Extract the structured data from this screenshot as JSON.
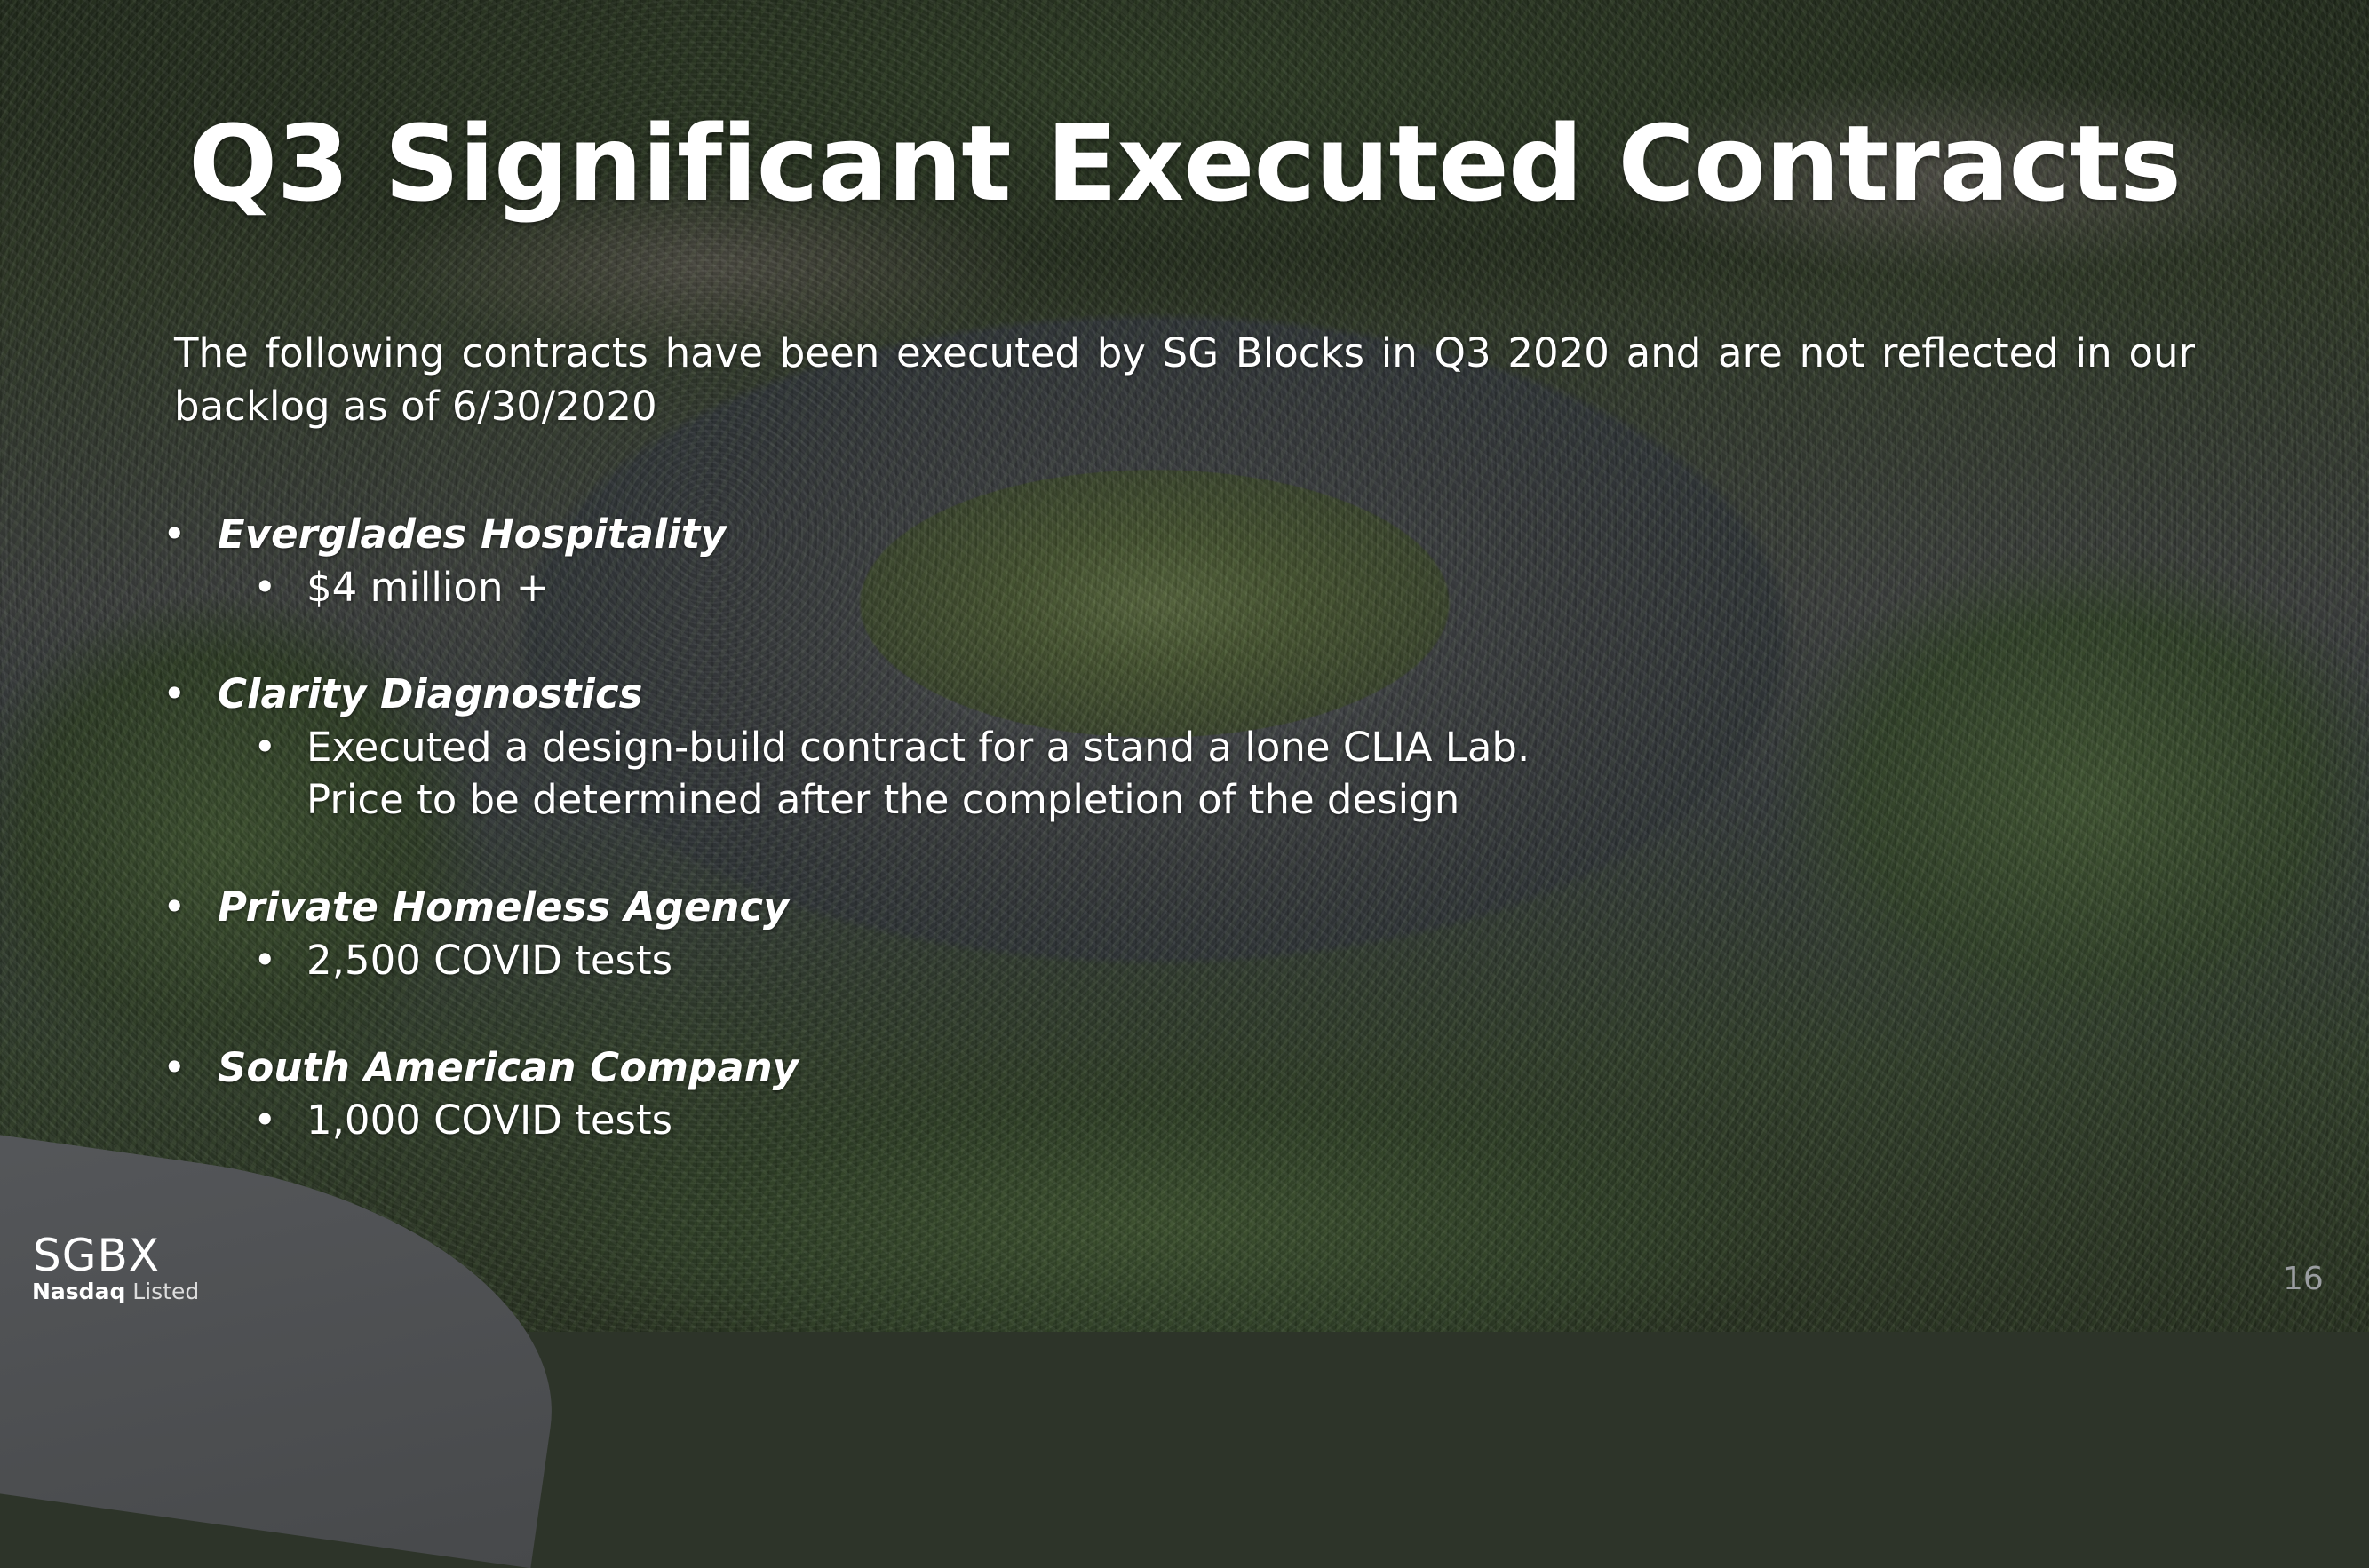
{
  "slide": {
    "title": "Q3 Significant Executed Contracts",
    "intro": "The following contracts have been executed by SG Blocks in Q3 2020 and are not reflected in our backlog as of 6/30/2020",
    "contracts": [
      {
        "name": "Everglades Hospitality",
        "details": [
          "$4 million +"
        ]
      },
      {
        "name": "Clarity Diagnostics",
        "details": [
          "Executed a design-build contract for a stand a lone CLIA Lab.",
          "Price to be determined after the completion of the design"
        ]
      },
      {
        "name": "Private Homeless Agency",
        "details": [
          "2,500 COVID tests"
        ]
      },
      {
        "name": "South American Company",
        "details": [
          "1,000 COVID tests"
        ]
      }
    ],
    "page_number": "16"
  },
  "logo": {
    "ticker": "SGBX",
    "exchange": "Nasdaq",
    "listed": "Listed"
  }
}
